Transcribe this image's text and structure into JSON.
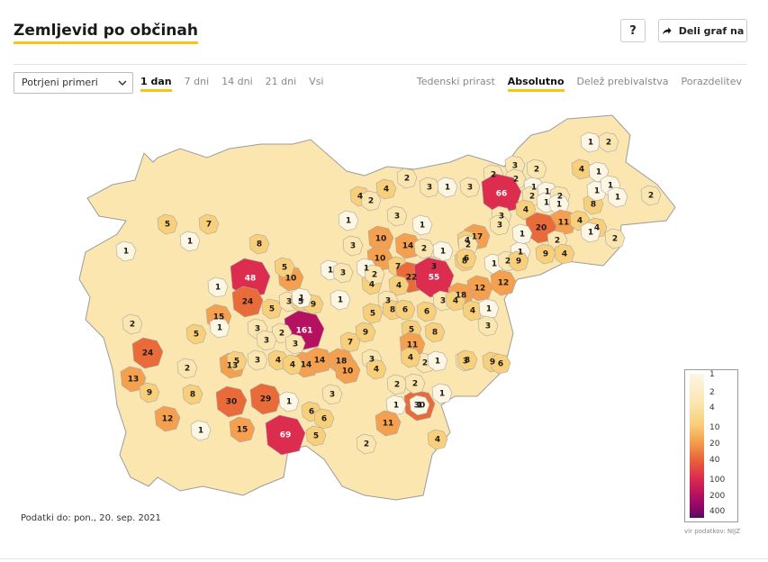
{
  "header": {
    "title": "Zemljevid po občinah",
    "help_label": "?",
    "share_label": "Deli graf na"
  },
  "controls": {
    "metric_select": "Potrjeni primeri",
    "periods": [
      "1 dan",
      "7 dni",
      "14 dni",
      "21 dni",
      "Vsi"
    ],
    "active_period": "1 dan",
    "modes": [
      "Tedenski prirast",
      "Absolutno",
      "Delež prebivalstva",
      "Porazdelitev"
    ],
    "active_mode": "Absolutno"
  },
  "colors": {
    "accent": "#f5c518",
    "scale": [
      "#fdf6e3",
      "#fbe6b0",
      "#f8cf7a",
      "#f4a04e",
      "#ea6b3a",
      "#dc2d4f",
      "#b51160",
      "#8a0866",
      "#5a0b62"
    ]
  },
  "legend": {
    "ticks": [
      "1",
      "2",
      "4",
      "10",
      "20",
      "40",
      "100",
      "200",
      "400"
    ]
  },
  "footer": {
    "data_date": "Podatki do: pon., 20. sep. 2021",
    "source": "vir podatkov: NIJZ"
  },
  "map": {
    "values": [
      "1",
      "2",
      "4",
      "1",
      "2",
      "3",
      "2",
      "2",
      "1",
      "2",
      "3",
      "1",
      "3",
      "4",
      "66",
      "2",
      "1",
      "4",
      "1",
      "2",
      "8",
      "1",
      "1",
      "1",
      "2",
      "2",
      "4",
      "1",
      "3",
      "11",
      "20",
      "4",
      "4",
      "2",
      "17",
      "1",
      "1",
      "7",
      "3",
      "1",
      "4",
      "1",
      "8",
      "10",
      "14",
      "2",
      "3",
      "1",
      "5",
      "3",
      "2",
      "4",
      "1",
      "1",
      "10",
      "12",
      "9",
      "2",
      "8",
      "1",
      "6",
      "1",
      "2",
      "30",
      "7",
      "48",
      "3",
      "10",
      "1",
      "9",
      "4",
      "5",
      "22",
      "55",
      "18",
      "1",
      "24",
      "1",
      "5",
      "3",
      "4",
      "3",
      "2",
      "15",
      "5",
      "3",
      "9",
      "1",
      "12",
      "161",
      "5",
      "8",
      "6",
      "6",
      "3",
      "4",
      "1",
      "4",
      "1",
      "9",
      "3",
      "8",
      "1",
      "3",
      "2",
      "5",
      "2",
      "24",
      "5",
      "3",
      "7",
      "11",
      "3",
      "3",
      "13",
      "4",
      "14",
      "14",
      "18",
      "3",
      "3",
      "9",
      "8",
      "6",
      "2",
      "1",
      "2",
      "10",
      "4",
      "4",
      "5",
      "13",
      "4",
      "3",
      "2",
      "2",
      "1",
      "9",
      "8",
      "29",
      "30",
      "1",
      "6",
      "12",
      "1",
      "6",
      "1",
      "1",
      "11",
      "15",
      "2",
      "69",
      "5",
      "4"
    ]
  }
}
